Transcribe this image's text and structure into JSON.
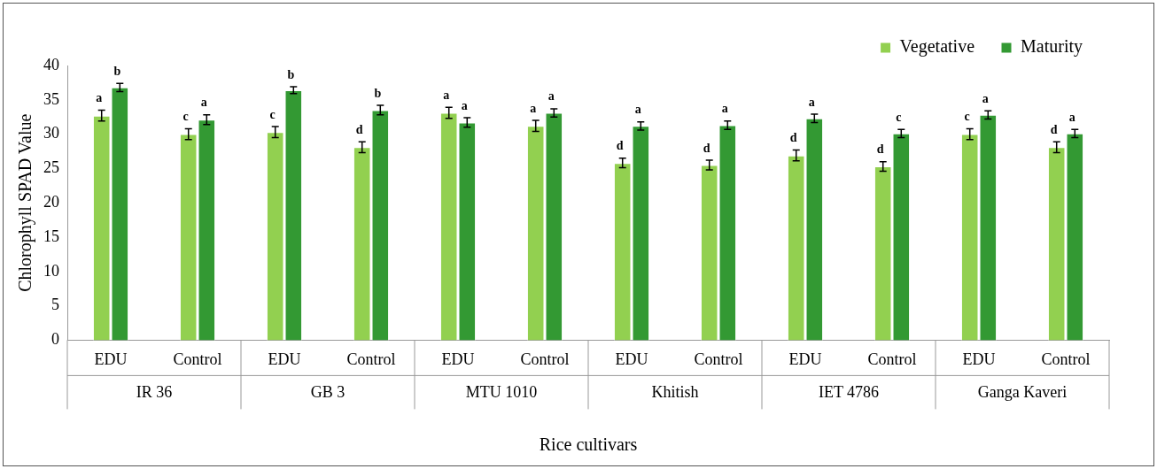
{
  "chart_data": {
    "type": "bar",
    "xlabel": "Rice cultivars",
    "ylabel": "Chlorophyll SPAD Value",
    "categories": [
      "EDU",
      "Control",
      "EDU",
      "Control",
      "EDU",
      "Control",
      "EDU",
      "Control",
      "EDU",
      "Control",
      "EDU",
      "Control"
    ],
    "annotations": [
      "IR 36",
      "GB 3",
      "MTU 1010",
      "Khitish",
      "IET 4786",
      "Ganga Kaveri"
    ],
    "series": [
      {
        "name": "Vegetative",
        "color": "#92d050",
        "values": [
          32.7,
          30.0,
          30.3,
          28.1,
          33.1,
          31.2,
          25.8,
          25.5,
          26.9,
          25.3,
          30.0,
          28.1
        ],
        "errors": [
          0.8,
          0.8,
          0.8,
          0.8,
          0.8,
          0.8,
          0.7,
          0.7,
          0.8,
          0.7,
          0.8,
          0.8
        ],
        "value_labels": [
          "a",
          "c",
          "c",
          "d",
          "a",
          "a",
          "d",
          "d",
          "d",
          "d",
          "c",
          "d"
        ]
      },
      {
        "name": "Maturity",
        "color": "#339933",
        "values": [
          36.8,
          32.1,
          36.4,
          33.5,
          31.7,
          33.1,
          31.2,
          31.3,
          32.3,
          30.1,
          32.8,
          30.1
        ],
        "errors": [
          0.6,
          0.7,
          0.5,
          0.7,
          0.7,
          0.6,
          0.6,
          0.6,
          0.6,
          0.6,
          0.6,
          0.6
        ],
        "value_labels": [
          "b",
          "a",
          "b",
          "b",
          "a",
          "a",
          "a",
          "a",
          "a",
          "c",
          "a",
          "a"
        ]
      }
    ],
    "ylim": [
      0,
      40
    ],
    "yticks": [
      0,
      5,
      10,
      15,
      20,
      25,
      30,
      35,
      40
    ],
    "grid": false,
    "legend": "top right"
  }
}
